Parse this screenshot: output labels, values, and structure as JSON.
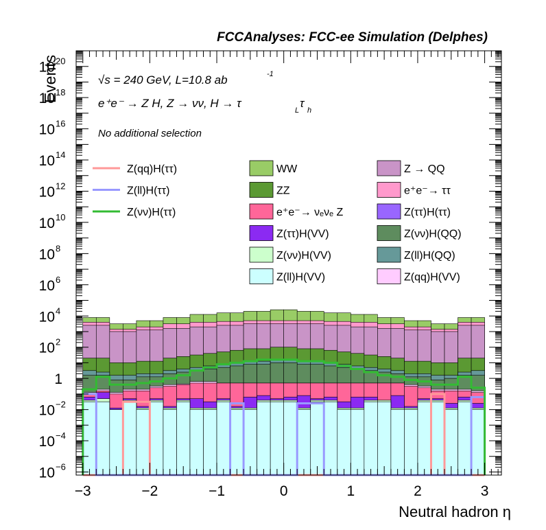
{
  "chart_data": {
    "type": "bar",
    "title": "FCCAnalyses: FCC-ee Simulation (Delphes)",
    "xlabel": "Neutral hadron η",
    "ylabel": "Events",
    "xlim": [
      -3.1,
      3.25
    ],
    "ylim_log10": [
      -6.2,
      21
    ],
    "y_scale": "log",
    "x_ticks": [
      "−3",
      "−2",
      "−1",
      "0",
      "1",
      "2",
      "3"
    ],
    "x_tick_values": [
      -3,
      -2,
      -1,
      0,
      1,
      2,
      3
    ],
    "y_ticks": [
      {
        "exp": -6,
        "base": "10",
        "sup": "−6"
      },
      {
        "exp": -4,
        "base": "10",
        "sup": "−4"
      },
      {
        "exp": -2,
        "base": "10",
        "sup": "−2"
      },
      {
        "exp": 0,
        "base": "1",
        "sup": ""
      },
      {
        "exp": 2,
        "base": "10",
        "sup": "2"
      },
      {
        "exp": 4,
        "base": "10",
        "sup": "4"
      },
      {
        "exp": 6,
        "base": "10",
        "sup": "6"
      },
      {
        "exp": 8,
        "base": "10",
        "sup": "8"
      },
      {
        "exp": 10,
        "base": "10",
        "sup": "10"
      },
      {
        "exp": 12,
        "base": "10",
        "sup": "12"
      },
      {
        "exp": 14,
        "base": "10",
        "sup": "14"
      },
      {
        "exp": 16,
        "base": "10",
        "sup": "16"
      },
      {
        "exp": 18,
        "base": "10",
        "sup": "18"
      },
      {
        "exp": 20,
        "base": "10",
        "sup": "20"
      }
    ],
    "bin_edges": [
      -3.0,
      -2.8,
      -2.6,
      -2.4,
      -2.2,
      -2.0,
      -1.8,
      -1.6,
      -1.4,
      -1.2,
      -1.0,
      -0.8,
      -0.6,
      -0.4,
      -0.2,
      0.0,
      0.2,
      0.4,
      0.6,
      0.8,
      1.0,
      1.2,
      1.4,
      1.6,
      1.8,
      2.0,
      2.2,
      2.4,
      2.6,
      2.8,
      3.0
    ],
    "annotations": {
      "line1": "√s = 240 GeV, L=10.8 ab",
      "line1_sup": "-1",
      "line2": "e⁺e⁻ → Z H, Z → νν, H → τ",
      "line2_sub1": "L",
      "line2_tau": "τ",
      "line2_sub2": "h",
      "line3": "No additional selection"
    },
    "stacked_series_log10": [
      {
        "name": "Z(ll)H(VV)",
        "color": "#ccffff",
        "values": [
          -1.5,
          -1.5,
          -2,
          -1.5,
          -2,
          -1.5,
          -2,
          -1.5,
          -2,
          -2,
          -1.5,
          -2,
          -2,
          -1.5,
          -1.5,
          -1.5,
          -2,
          -1.5,
          -1.5,
          -2,
          -2,
          -1.5,
          -1.5,
          -2,
          -2,
          -1.5,
          -1.5,
          -2,
          -1.5,
          -2
        ]
      },
      {
        "name": "Z(νν)H(VV)",
        "color": "#ccffcc",
        "values": [
          -1.4,
          -1.3,
          -2,
          -1.4,
          -1.9,
          -1.4,
          -1.9,
          -1.4,
          -1.9,
          -1.9,
          -1.4,
          -1.9,
          -1.9,
          -1.4,
          -1.4,
          -1.4,
          -1.9,
          -1.4,
          -1.4,
          -1.9,
          -1.9,
          -1.4,
          -1.4,
          -1.9,
          -1.9,
          -1.4,
          -1.4,
          -1.9,
          -1.4,
          -1.9
        ]
      },
      {
        "name": "Z(ττ)H(VV)",
        "color": "#8b2af2",
        "values": [
          -1.2,
          -0.9,
          -1.9,
          -1.3,
          -1.8,
          -1.3,
          -1.8,
          -1.3,
          -1.3,
          -1.5,
          -1.3,
          -1.8,
          -1.2,
          -1.1,
          -1.3,
          -1.2,
          -1.1,
          -1.3,
          -1.2,
          -1.5,
          -1.2,
          -1.2,
          -1.4,
          -1.1,
          -1.8,
          -1.3,
          -1.3,
          -1.6,
          -1.2,
          -1.6
        ]
      },
      {
        "name": "e⁺e⁻→ νₑνₑ Z",
        "color": "#ff6699",
        "values": [
          -1.0,
          -0.8,
          -1.0,
          -0.8,
          -0.8,
          -0.6,
          -0.5,
          -0.4,
          -0.3,
          -0.3,
          -0.3,
          -0.3,
          -0.3,
          -0.3,
          -0.3,
          -0.3,
          -0.3,
          -0.3,
          -0.3,
          -0.3,
          -0.3,
          -0.3,
          -0.3,
          -0.3,
          -0.5,
          -0.6,
          -0.8,
          -0.8,
          -0.8,
          -0.9
        ]
      },
      {
        "name": "Z(qq)H(VV)",
        "color": "#ffccff",
        "values": [
          -0.9,
          -0.7,
          -0.9,
          -0.7,
          -0.7,
          -0.5,
          -0.4,
          -0.35,
          -0.2,
          -0.2,
          -0.3,
          -0.3,
          -0.3,
          -0.3,
          -0.3,
          -0.3,
          -0.3,
          -0.3,
          -0.3,
          -0.3,
          -0.3,
          -0.3,
          -0.3,
          -0.3,
          -0.4,
          -0.5,
          -0.7,
          -0.7,
          -0.7,
          -0.8
        ]
      },
      {
        "name": "Z(νν)H(QQ)",
        "color": "#5e8c5e",
        "values": [
          0.2,
          0.2,
          -0.1,
          -0.1,
          0.1,
          0.1,
          0.3,
          0.4,
          0.5,
          0.6,
          0.7,
          0.8,
          0.9,
          0.9,
          1.0,
          1.0,
          0.9,
          0.9,
          0.8,
          0.7,
          0.6,
          0.5,
          0.4,
          0.3,
          0.1,
          0.1,
          -0.1,
          0.0,
          0.2,
          0.2
        ]
      },
      {
        "name": "Z(ll)H(QQ)",
        "color": "#669999",
        "values": [
          0.5,
          0.4,
          0.2,
          0.2,
          0.3,
          0.3,
          0.5,
          0.6,
          0.7,
          0.8,
          0.9,
          1.0,
          1.1,
          1.1,
          1.2,
          1.2,
          1.1,
          1.1,
          1.0,
          0.9,
          0.8,
          0.7,
          0.6,
          0.5,
          0.3,
          0.3,
          0.2,
          0.2,
          0.4,
          0.5
        ]
      },
      {
        "name": "ZZ",
        "color": "#5b9933",
        "values": [
          1.3,
          1.3,
          1.0,
          1.0,
          1.1,
          1.1,
          1.3,
          1.4,
          1.5,
          1.6,
          1.7,
          1.8,
          1.9,
          1.9,
          2.0,
          2.0,
          1.9,
          1.9,
          1.8,
          1.7,
          1.6,
          1.5,
          1.4,
          1.3,
          1.1,
          1.1,
          1.0,
          1.0,
          1.3,
          1.3
        ]
      },
      {
        "name": "Z → QQ",
        "color": "#c994c7",
        "values": [
          3.4,
          3.4,
          3.0,
          3.0,
          3.1,
          3.1,
          3.2,
          3.2,
          3.3,
          3.3,
          3.4,
          3.4,
          3.5,
          3.5,
          3.5,
          3.5,
          3.5,
          3.5,
          3.4,
          3.4,
          3.3,
          3.3,
          3.2,
          3.2,
          3.1,
          3.1,
          3.0,
          3.0,
          3.4,
          3.4
        ]
      },
      {
        "name": "e⁺e⁻→ ττ",
        "color": "#ff99cc",
        "values": [
          3.6,
          3.6,
          3.15,
          3.15,
          3.3,
          3.3,
          3.5,
          3.5,
          3.6,
          3.6,
          3.65,
          3.65,
          3.7,
          3.7,
          3.7,
          3.7,
          3.7,
          3.7,
          3.65,
          3.65,
          3.6,
          3.6,
          3.5,
          3.5,
          3.3,
          3.3,
          3.15,
          3.15,
          3.6,
          3.6
        ]
      },
      {
        "name": "WW",
        "color": "#99cc66",
        "values": [
          3.9,
          3.9,
          3.5,
          3.5,
          3.7,
          3.7,
          3.9,
          3.9,
          4.1,
          4.1,
          4.2,
          4.2,
          4.3,
          4.3,
          4.4,
          4.4,
          4.3,
          4.3,
          4.2,
          4.2,
          4.1,
          4.1,
          3.9,
          3.9,
          3.7,
          3.7,
          3.5,
          3.5,
          3.9,
          3.9
        ]
      }
    ],
    "line_series_log10": [
      {
        "name": "Z(qq)H(ττ)",
        "color": "#ff9999",
        "values": [
          -6.2,
          -6.2,
          -6.2,
          -1.5,
          -1.5,
          -6.2,
          -6.2,
          -6.2,
          -6.2,
          -6.2,
          -6.2,
          -6.2,
          -6.2,
          -6.2,
          -6.2,
          -6.2,
          -6.2,
          -6.2,
          -6.2,
          -6.2,
          -6.2,
          -6.2,
          -6.2,
          -6.2,
          -6.2,
          -6.2,
          -1.0,
          -6.2,
          -6.2,
          -6.2
        ]
      },
      {
        "name": "Z(ll)H(ττ)",
        "color": "#9999ff",
        "values": [
          -1.0,
          -6.2,
          -6.2,
          -6.2,
          -6.2,
          -6.2,
          -6.2,
          -6.2,
          -6.2,
          -6.2,
          -6.2,
          -1.6,
          -6.2,
          -6.2,
          -6.2,
          -6.2,
          -1.6,
          -1.6,
          -6.2,
          -6.2,
          -6.2,
          -6.2,
          -6.2,
          -6.2,
          -6.2,
          -6.2,
          -6.2,
          -6.2,
          -6.2,
          -1.2
        ]
      },
      {
        "name": "Z(νν)H(ττ)",
        "color": "#33bb33",
        "values": [
          -0.7,
          0.1,
          -0.4,
          -0.4,
          -0.3,
          -0.2,
          0.0,
          0.2,
          0.5,
          0.7,
          0.9,
          1.0,
          1.1,
          1.2,
          1.2,
          1.2,
          1.1,
          1.1,
          1.0,
          0.8,
          0.6,
          0.4,
          0.2,
          0.1,
          -0.1,
          -0.2,
          -0.4,
          -0.4,
          0.1,
          -0.6
        ]
      }
    ],
    "legend_columns": [
      [
        {
          "label": "Z(qq)H(ττ)",
          "kind": "line",
          "color": "#ff9999"
        },
        {
          "label": "Z(ll)H(ττ)",
          "kind": "line",
          "color": "#9999ff"
        },
        {
          "label": "Z(νν)H(ττ)",
          "kind": "line",
          "color": "#33bb33"
        }
      ],
      [
        {
          "label": "WW",
          "kind": "box",
          "color": "#99cc66"
        },
        {
          "label": "ZZ",
          "kind": "box",
          "color": "#5b9933"
        },
        {
          "label": "e⁺e⁻→ νₑνₑ Z",
          "kind": "box",
          "color": "#ff6699"
        },
        {
          "label": "Z(ττ)H(VV)",
          "kind": "box",
          "color": "#8b2af2"
        },
        {
          "label": "Z(νν)H(VV)",
          "kind": "box",
          "color": "#ccffcc"
        },
        {
          "label": "Z(ll)H(VV)",
          "kind": "box",
          "color": "#ccffff"
        }
      ],
      [
        {
          "label": "Z → QQ",
          "kind": "box",
          "color": "#c994c7"
        },
        {
          "label": "e⁺e⁻→ ττ",
          "kind": "box",
          "color": "#ff99cc"
        },
        {
          "label": "Z(ττ)H(ττ)",
          "kind": "box",
          "color": "#9966ff"
        },
        {
          "label": "Z(νν)H(QQ)",
          "kind": "box",
          "color": "#5e8c5e"
        },
        {
          "label": "Z(ll)H(QQ)",
          "kind": "box",
          "color": "#669999"
        },
        {
          "label": "Z(qq)H(VV)",
          "kind": "box",
          "color": "#ffccff"
        }
      ]
    ],
    "legend_placement": "top-center, three columns",
    "grid": false
  }
}
